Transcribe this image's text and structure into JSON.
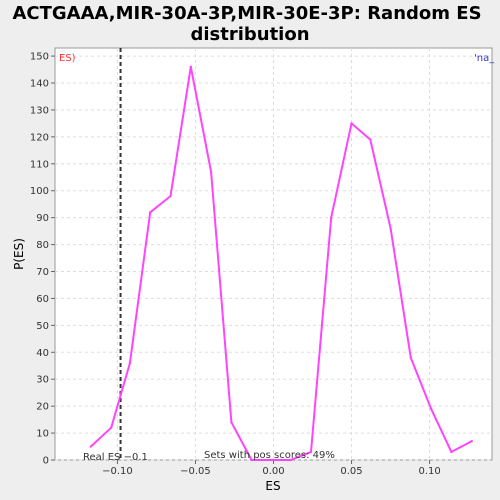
{
  "chart_data": {
    "type": "line",
    "title_line1": "ACTGAAA,MIR-30A-3P,MIR-30E-3P: Random ES",
    "title_line2": "distribution",
    "xlabel": "ES",
    "ylabel": "P(ES)",
    "xlim": [
      -0.14,
      0.14
    ],
    "ylim": [
      0,
      153
    ],
    "x_ticks": [
      -0.1,
      -0.05,
      0.0,
      0.05,
      0.1
    ],
    "x_tick_labels": [
      "−0.10",
      "−0.05",
      "0.00",
      "0.05",
      "0.10"
    ],
    "y_ticks": [
      0,
      10,
      20,
      30,
      40,
      50,
      60,
      70,
      80,
      90,
      100,
      110,
      120,
      130,
      140,
      150
    ],
    "y_tick_labels": [
      "0",
      "10",
      "20",
      "30",
      "40",
      "50",
      "60",
      "70",
      "80",
      "90",
      "100",
      "110",
      "120",
      "130",
      "140",
      "150"
    ],
    "grid": true,
    "series": [
      {
        "name": "ES)",
        "color": "#ff44ff",
        "x": [
          -0.117,
          -0.104,
          -0.092,
          -0.079,
          -0.066,
          -0.053,
          -0.04,
          -0.027,
          -0.014,
          -0.001,
          0.011,
          0.024,
          0.037,
          0.05,
          0.062,
          0.075,
          0.088,
          0.101,
          0.114,
          0.127
        ],
        "y": [
          5,
          12,
          36,
          92,
          98,
          146,
          107,
          14,
          0,
          0,
          0,
          3,
          90,
          125,
          119,
          86,
          38,
          19,
          3,
          7
        ]
      }
    ],
    "legend_left": {
      "text": "ES)",
      "color": "#ff3333"
    },
    "legend_right": {
      "text": "'na_",
      "color": "#3333cc"
    },
    "real_es": {
      "x": -0.098,
      "label": "Real ES −0.1"
    },
    "annotation": "Sets with pos scores: 49%"
  }
}
